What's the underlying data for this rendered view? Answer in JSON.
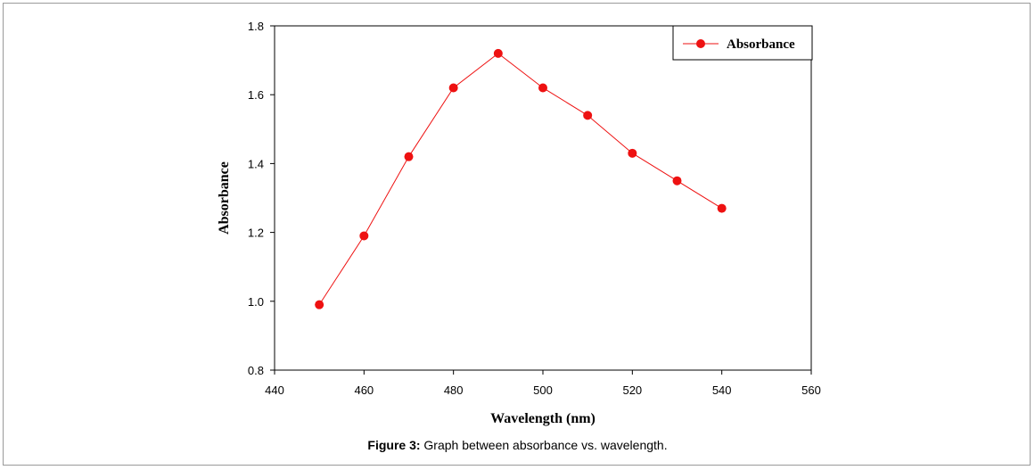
{
  "chart_data": {
    "type": "line",
    "xlabel": "Wavelength (nm)",
    "ylabel": "Absorbance",
    "xlim": [
      440,
      560
    ],
    "ylim": [
      0.8,
      1.8
    ],
    "x_ticks": [
      "440",
      "460",
      "480",
      "500",
      "520",
      "540",
      "560"
    ],
    "y_ticks": [
      "0.8",
      "1.0",
      "1.2",
      "1.4",
      "1.6",
      "1.8"
    ],
    "grid": false,
    "legend_position": "top-right",
    "series": [
      {
        "name": "Absorbance",
        "color": "#ee1111",
        "marker": "circle",
        "x": [
          450,
          460,
          470,
          480,
          490,
          500,
          510,
          520,
          530,
          540
        ],
        "y": [
          0.99,
          1.19,
          1.42,
          1.62,
          1.72,
          1.62,
          1.54,
          1.43,
          1.35,
          1.27
        ]
      }
    ]
  },
  "caption": {
    "label": "Figure 3:",
    "text": " Graph between absorbance vs. wavelength."
  }
}
